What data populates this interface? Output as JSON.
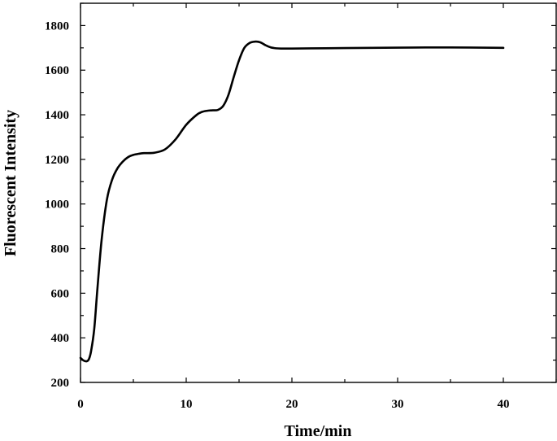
{
  "chart_data": {
    "type": "line",
    "title": "",
    "xlabel": "Time/min",
    "ylabel": "Fluorescent Intensity",
    "xlim": [
      0,
      45
    ],
    "ylim": [
      200,
      1900
    ],
    "xticks": [
      0,
      10,
      20,
      30,
      40
    ],
    "xtick_labels": [
      "0",
      "10",
      "20",
      "30",
      "40"
    ],
    "yticks": [
      200,
      400,
      600,
      800,
      1000,
      1200,
      1400,
      1600,
      1800
    ],
    "ytick_labels": [
      "200",
      "400",
      "600",
      "800",
      "1000",
      "1200",
      "1400",
      "1600",
      "1800"
    ],
    "grid": false,
    "legend": false,
    "series": [
      {
        "color": "#000000",
        "x": [
          0,
          0.3,
          0.6,
          0.8,
          1.0,
          1.3,
          1.6,
          2.0,
          2.5,
          3.0,
          3.5,
          4.0,
          4.5,
          5.0,
          5.5,
          6.0,
          7.0,
          8.0,
          9.0,
          10.0,
          11.0,
          11.5,
          12.0,
          12.5,
          13.0,
          13.5,
          14.0,
          14.5,
          15.0,
          15.5,
          16.0,
          16.5,
          17.0,
          17.5,
          18.0,
          18.5,
          19.0,
          20.0,
          25.0,
          30.0,
          35.0,
          40.0
        ],
        "y": [
          310,
          298,
          295,
          305,
          340,
          440,
          620,
          840,
          1020,
          1110,
          1160,
          1190,
          1210,
          1220,
          1225,
          1228,
          1230,
          1245,
          1290,
          1355,
          1400,
          1413,
          1418,
          1420,
          1422,
          1440,
          1490,
          1570,
          1645,
          1700,
          1722,
          1728,
          1725,
          1712,
          1702,
          1698,
          1697,
          1697,
          1699,
          1701,
          1702,
          1700
        ]
      }
    ]
  }
}
